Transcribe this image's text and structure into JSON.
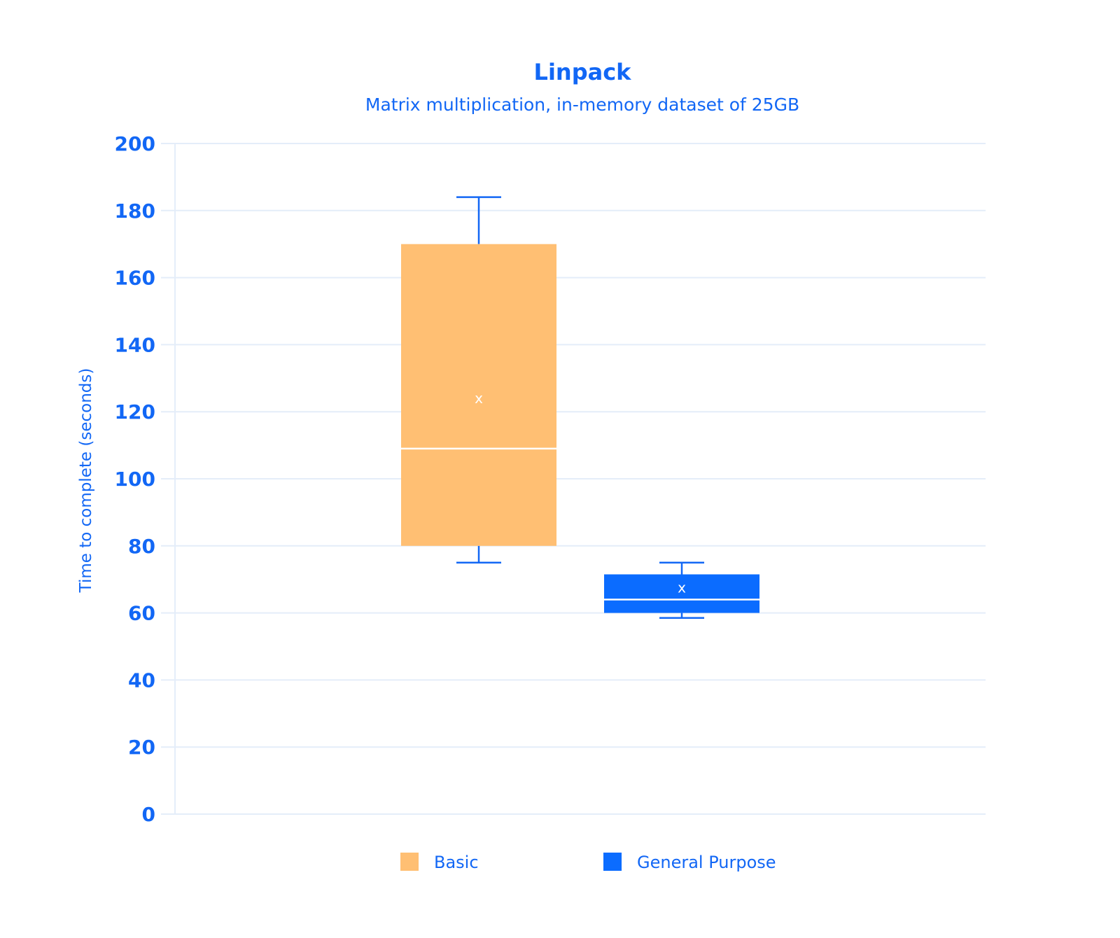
{
  "chart_data": {
    "type": "box",
    "title": "Linpack",
    "subtitle": "Matrix multiplication, in-memory dataset of 25GB",
    "xlabel": "",
    "ylabel": "Time to complete (seconds)",
    "ylim": [
      0,
      200
    ],
    "yticks": [
      "0",
      "20",
      "40",
      "60",
      "80",
      "100",
      "120",
      "140",
      "160",
      "180",
      "200"
    ],
    "grid": true,
    "legend_position": "bottom",
    "mean_symbol": "x",
    "series": [
      {
        "name": "Basic",
        "color": "#ffbf73",
        "min": 75,
        "q1": 80,
        "median": 109,
        "q3": 170,
        "max": 184,
        "mean": 124
      },
      {
        "name": "General Purpose",
        "color": "#0b6cff",
        "min": 58.5,
        "q1": 60,
        "median": 64,
        "q3": 71.5,
        "max": 75,
        "mean": 67.5
      }
    ],
    "colors": {
      "text": "#1267f5",
      "grid": "#e4edf9",
      "whisker": "#1267f5",
      "median_line": "#ffffff"
    }
  }
}
